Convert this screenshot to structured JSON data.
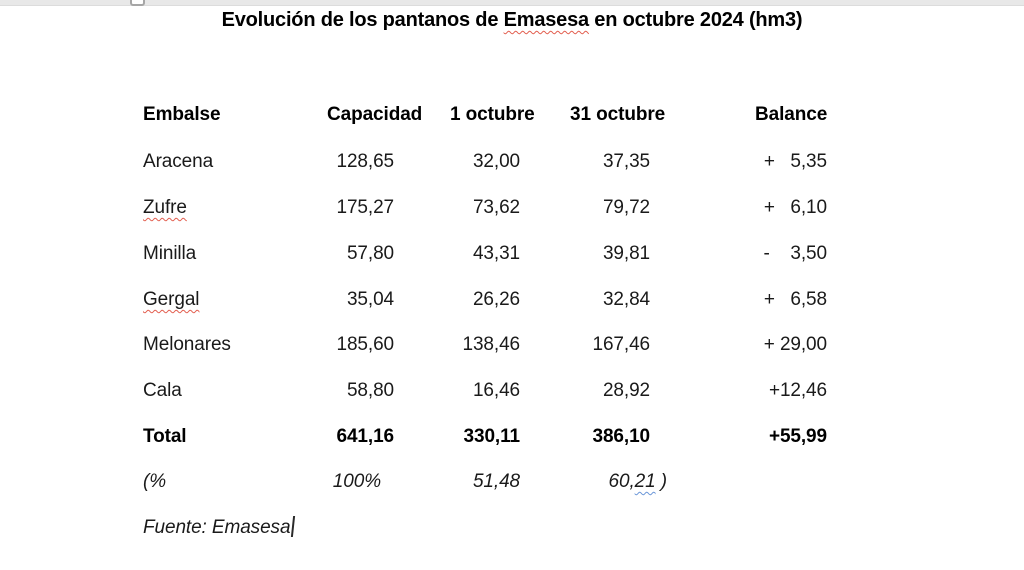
{
  "title": {
    "pre": "Evolución de los pantanos de ",
    "misspelled": "Emasesa",
    "post": " en octubre 2024 (hm3)"
  },
  "table": {
    "headers": {
      "embalse": "Embalse",
      "capacidad": "Capacidad",
      "oct1": "1 octubre",
      "oct31": "31 octubre",
      "balance": "Balance"
    },
    "rows": [
      {
        "name": "Aracena",
        "misspelled": false,
        "capacidad": "128,65",
        "oct1": "32,00",
        "oct31": "37,35",
        "balance": "+   5,35"
      },
      {
        "name": "Zufre",
        "misspelled": true,
        "capacidad": "175,27",
        "oct1": "73,62",
        "oct31": "79,72",
        "balance": "+   6,10"
      },
      {
        "name": "Minilla",
        "misspelled": false,
        "capacidad": "57,80",
        "oct1": "43,31",
        "oct31": "39,81",
        "balance": "-    3,50"
      },
      {
        "name": "Gergal",
        "misspelled": true,
        "capacidad": "35,04",
        "oct1": "26,26",
        "oct31": "32,84",
        "balance": "+   6,58"
      },
      {
        "name": "Melonares",
        "misspelled": false,
        "capacidad": "185,60",
        "oct1": "138,46",
        "oct31": "167,46",
        "balance": "+ 29,00"
      },
      {
        "name": "Cala",
        "misspelled": false,
        "capacidad": "58,80",
        "oct1": "16,46",
        "oct31": "28,92",
        "balance": "+12,46"
      }
    ],
    "total_row": {
      "name": "Total",
      "capacidad": "641,16",
      "oct1": "330,11",
      "oct31": "386,10",
      "balance": "+55,99"
    },
    "percent_row": {
      "name": "(%",
      "capacidad": "100%",
      "oct1": "51,48",
      "oct31_a": "60,",
      "oct31_b": "21",
      "oct31_c": " )"
    }
  },
  "source_line": "Fuente: Emasesa",
  "colors": {
    "spellcheck_red": "#e25d4e",
    "grammar_blue": "#6a96d8",
    "text": "#1a1a1a",
    "top_strip": "#e8e8e8"
  }
}
